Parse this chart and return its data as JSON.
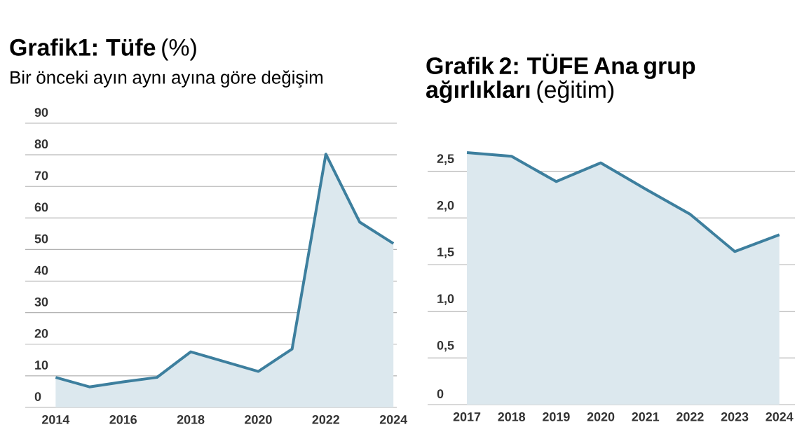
{
  "chart_data": [
    {
      "type": "area",
      "title": "**Grafik1: Tüfe** (%)",
      "subtitle": "Bir önceki ayın aynı ayına göre değişim",
      "x": [
        2014,
        2015,
        2016,
        2017,
        2018,
        2019,
        2020,
        2021,
        2022,
        2023,
        2024
      ],
      "series": [
        {
          "color": "#3d7f9e",
          "values": [
            9.5,
            6.5,
            8.1,
            9.5,
            17.6,
            14.5,
            11.4,
            18.5,
            80.2,
            58.7,
            51.9
          ]
        }
      ],
      "xlim": [
        2013.1,
        2024.1
      ],
      "xticks": [
        2014,
        2016,
        2018,
        2020,
        2022,
        2024
      ],
      "ylim": [
        0,
        90
      ],
      "yticks": [
        0,
        10,
        20,
        30,
        40,
        50,
        60,
        70,
        80,
        90
      ],
      "grid": "y"
    },
    {
      "type": "area",
      "title": "**Grafik 2: TÜFE Ana grup ağırlıkları** (eğitim)",
      "x": [
        2017,
        2018,
        2019,
        2020,
        2021,
        2022,
        2023,
        2024
      ],
      "series": [
        {
          "color": "#3d7f9e",
          "values": [
            2.7,
            2.66,
            2.39,
            2.59,
            2.31,
            2.04,
            1.64,
            1.82
          ]
        }
      ],
      "xlim": [
        2016.12,
        2024.35
      ],
      "xticks": [
        2017,
        2018,
        2019,
        2020,
        2021,
        2022,
        2023,
        2024
      ],
      "ylim": [
        0,
        2.7
      ],
      "yticks": [
        0,
        {
          "value": 0.5,
          "label": "0,5"
        },
        {
          "value": 1.0,
          "label": "1,0"
        },
        {
          "value": 1.5,
          "label": "1,5"
        },
        {
          "value": 2.0,
          "label": "2,0"
        },
        {
          "value": 2.5,
          "label": "2,5"
        }
      ],
      "grid": "y"
    }
  ]
}
